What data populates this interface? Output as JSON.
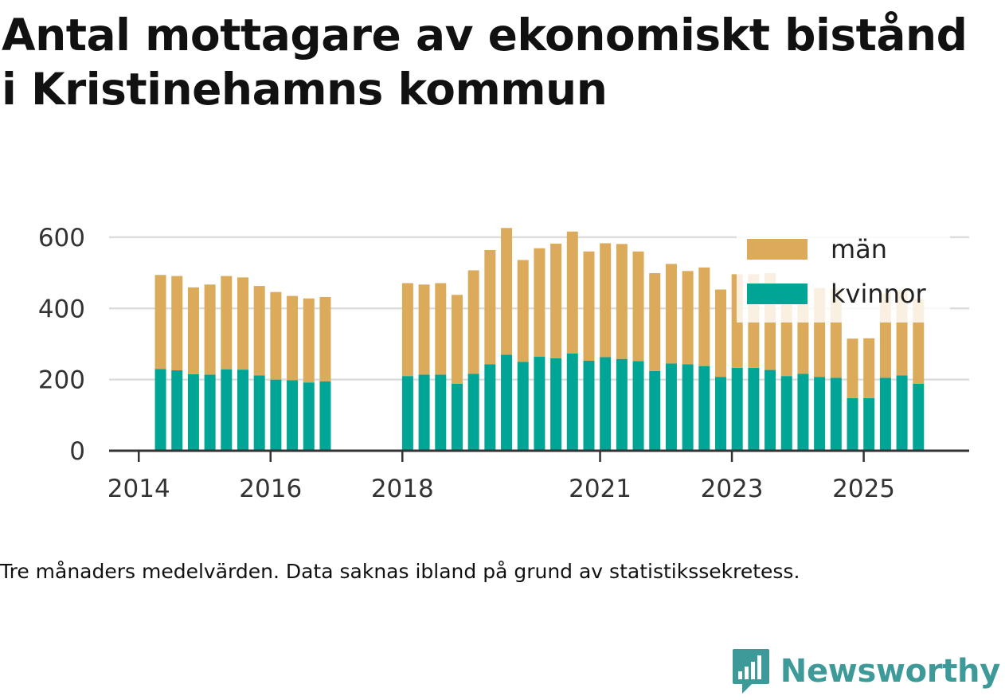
{
  "title_lines": [
    "Antal mottagare av ekonomiskt bistånd",
    "i Kristinehamns kommun"
  ],
  "caption": "Tre månaders medelvärden. Data saknas ibland på grund av statistikssekretess.",
  "brand": "Newsworthy",
  "colors": {
    "man": "#dbab5b",
    "kvinnor": "#00a596",
    "grid": "#dddddd",
    "axis": "#333333",
    "brand": "#3d9a98"
  },
  "chart_data": {
    "type": "bar",
    "stacked": true,
    "title": "Antal mottagare av ekonomiskt bistånd i Kristinehamns kommun",
    "xlabel": "",
    "ylabel": "",
    "ylim": [
      0,
      640
    ],
    "xlim": [
      2013.55,
      2026.6
    ],
    "yticks": [
      0,
      200,
      400,
      600
    ],
    "xticks": [
      2014,
      2016,
      2018,
      2021,
      2023,
      2025
    ],
    "legend_position": "top-right",
    "series": [
      {
        "name": "kvinnor",
        "color": "#00a596",
        "values": [
          230,
          226,
          215,
          214,
          229,
          228,
          212,
          200,
          198,
          192,
          195,
          210,
          214,
          214,
          188,
          216,
          243,
          270,
          250,
          264,
          260,
          273,
          253,
          263,
          258,
          252,
          224,
          245,
          243,
          238,
          207,
          233,
          233,
          227,
          210,
          216,
          207,
          205,
          148,
          148,
          205,
          212,
          188
        ]
      },
      {
        "name": "män",
        "color": "#dbab5b",
        "values": [
          264,
          265,
          244,
          253,
          262,
          259,
          251,
          246,
          237,
          236,
          237,
          261,
          253,
          257,
          250,
          291,
          321,
          356,
          286,
          305,
          322,
          343,
          307,
          320,
          323,
          308,
          275,
          280,
          262,
          277,
          246,
          263,
          263,
          272,
          240,
          240,
          250,
          249,
          167,
          168,
          237,
          238,
          238
        ]
      }
    ],
    "x": [
      2014.33,
      2014.58,
      2014.83,
      2015.08,
      2015.33,
      2015.58,
      2015.83,
      2016.08,
      2016.33,
      2016.58,
      2016.83,
      2018.08,
      2018.33,
      2018.58,
      2018.83,
      2019.08,
      2019.33,
      2019.58,
      2019.83,
      2020.08,
      2020.33,
      2020.58,
      2020.83,
      2021.08,
      2021.33,
      2021.58,
      2021.83,
      2022.08,
      2022.33,
      2022.58,
      2022.83,
      2023.08,
      2023.33,
      2023.58,
      2023.83,
      2024.08,
      2024.33,
      2024.58,
      2024.83,
      2025.08,
      2025.33,
      2025.58,
      2025.83
    ],
    "legend": [
      "män",
      "kvinnor"
    ]
  }
}
